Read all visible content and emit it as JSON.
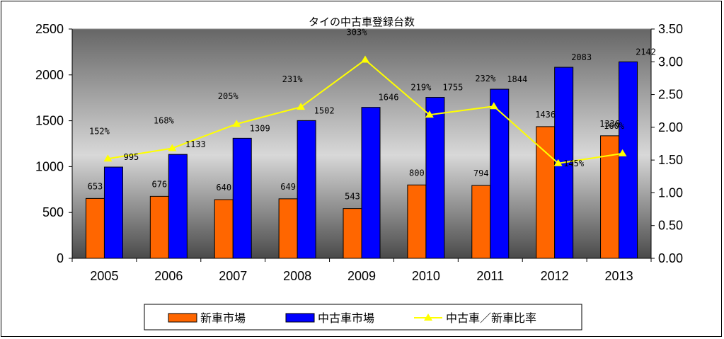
{
  "chart_data": {
    "type": "bar",
    "title": "タイの中古車登録台数",
    "categories": [
      "2005",
      "2006",
      "2007",
      "2008",
      "2009",
      "2010",
      "2011",
      "2012",
      "2013"
    ],
    "series": [
      {
        "name": "新車市場",
        "type": "bar",
        "axis": "left",
        "color": "#ff6600",
        "values": [
          653,
          676,
          640,
          649,
          543,
          800,
          794,
          1436,
          1336
        ]
      },
      {
        "name": "中古車市場",
        "type": "bar",
        "axis": "left",
        "color": "#0000ff",
        "values": [
          995,
          1133,
          1309,
          1502,
          1646,
          1755,
          1844,
          2083,
          2142
        ]
      },
      {
        "name": "中古車／新車比率",
        "type": "line",
        "axis": "right",
        "color": "#ffff00",
        "values": [
          1.52,
          1.68,
          2.05,
          2.31,
          3.03,
          2.19,
          2.32,
          1.45,
          1.6
        ],
        "labels": [
          "152%",
          "168%",
          "205%",
          "231%",
          "303%",
          "219%",
          "232%",
          "145%",
          "160%"
        ]
      }
    ],
    "y_left": {
      "ticks": [
        "0",
        "500",
        "1000",
        "1500",
        "2000",
        "2500"
      ],
      "ylim": [
        0,
        2500
      ]
    },
    "y_right": {
      "ticks": [
        "0.00",
        "0.50",
        "1.00",
        "1.50",
        "2.00",
        "2.50",
        "3.00",
        "3.50"
      ],
      "ylim": [
        0,
        3.5
      ]
    },
    "grid": false,
    "legend_position": "bottom"
  }
}
